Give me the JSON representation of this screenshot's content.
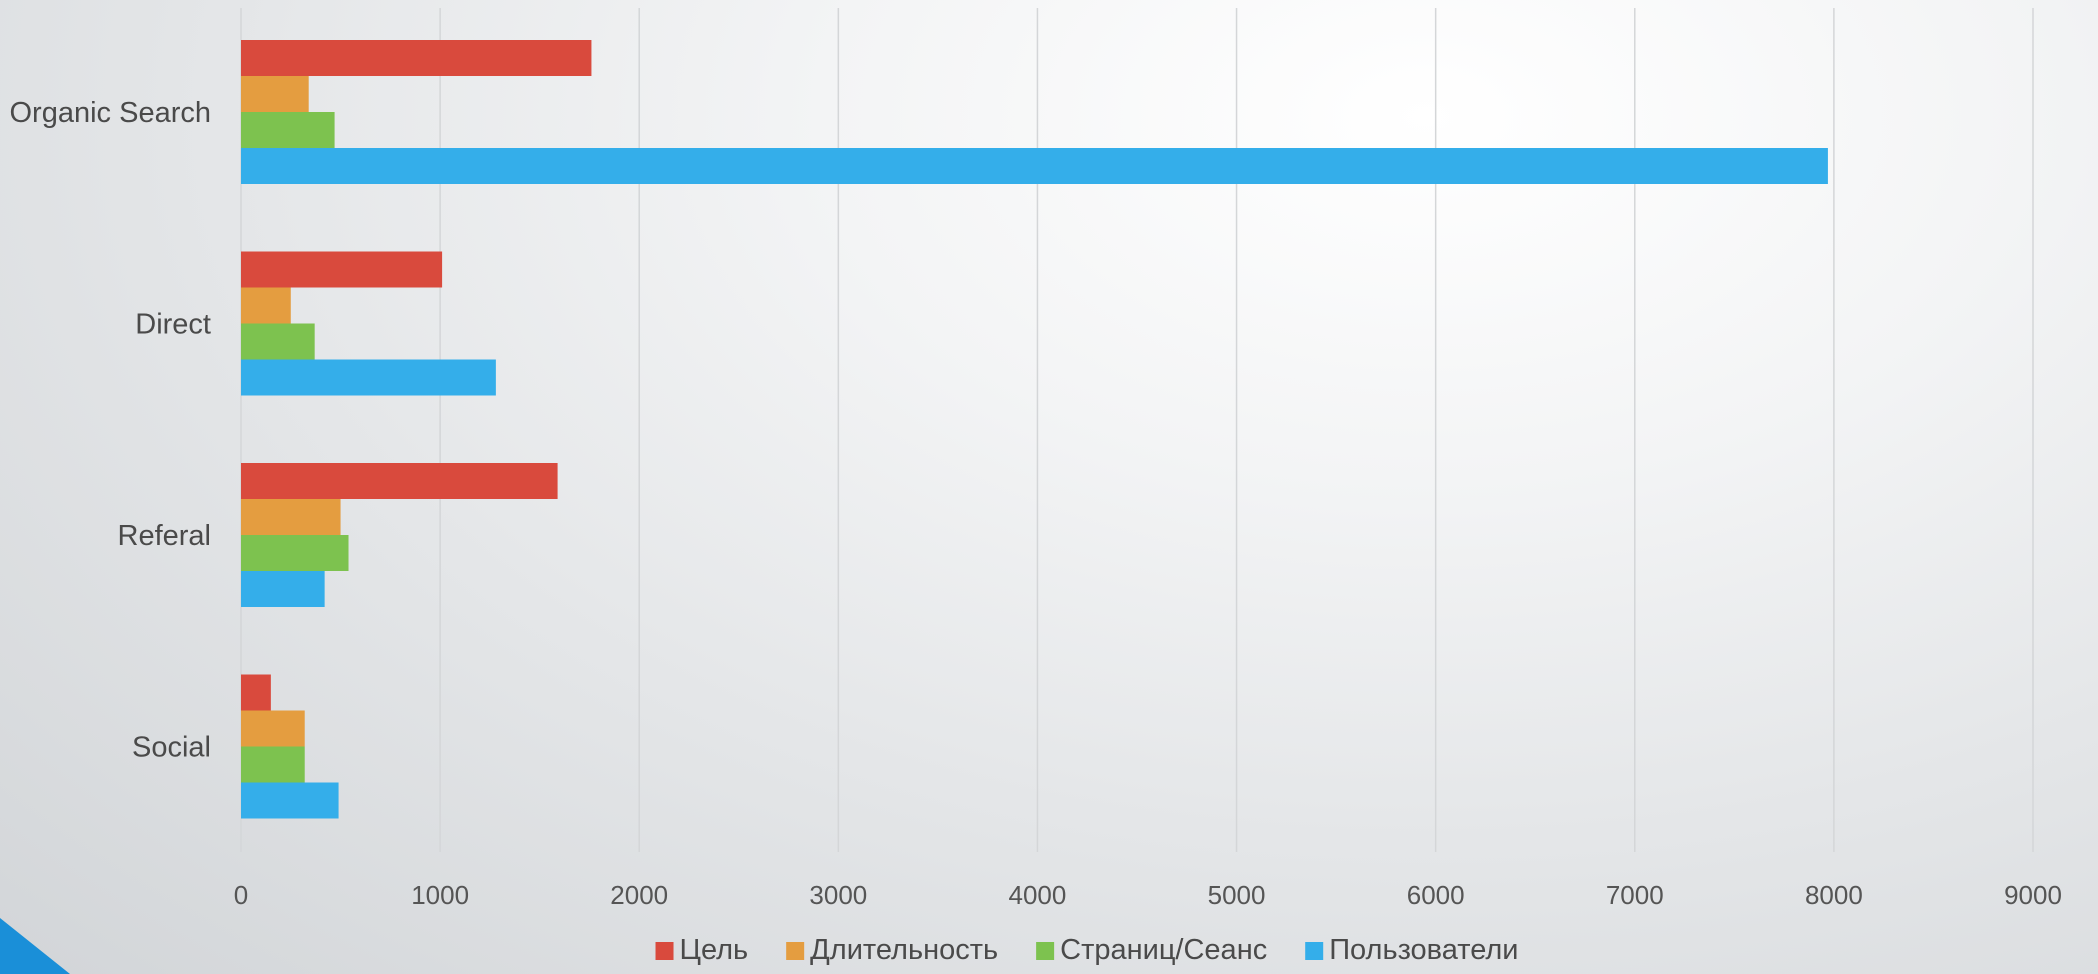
{
  "chart_data": {
    "type": "bar",
    "orientation": "horizontal",
    "categories": [
      "Organic Search",
      "Direct",
      "Referal",
      "Social"
    ],
    "series": [
      {
        "name": "Цель",
        "color": "#d94a3d",
        "values": [
          1760,
          1010,
          1590,
          150
        ]
      },
      {
        "name": "Длительность",
        "color": "#e49d40",
        "values": [
          340,
          250,
          500,
          320
        ]
      },
      {
        "name": "Страниц/Сеанс",
        "color": "#7dc24f",
        "values": [
          470,
          370,
          540,
          320
        ]
      },
      {
        "name": "Пользователи",
        "color": "#34aeea",
        "values": [
          7970,
          1280,
          420,
          490
        ]
      }
    ],
    "xlim": [
      0,
      9000
    ],
    "xticks": [
      "0",
      "1000",
      "2000",
      "3000",
      "4000",
      "5000",
      "6000",
      "7000",
      "8000",
      "9000"
    ],
    "grid": true,
    "legend_position": "bottom",
    "title": "",
    "xlabel": "",
    "ylabel": ""
  },
  "decoration": {
    "corner_color": "#1a8fd8"
  }
}
